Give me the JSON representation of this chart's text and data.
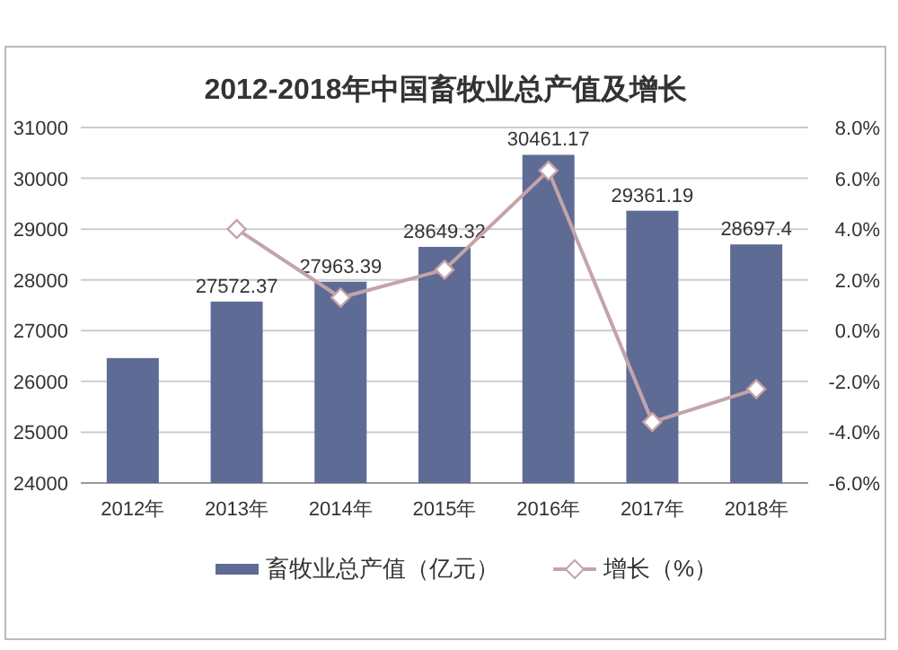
{
  "chart_data": {
    "type": "bar",
    "title": "2012-2018年中国畜牧业总产值及增长",
    "categories": [
      "2012年",
      "2013年",
      "2014年",
      "2015年",
      "2016年",
      "2017年",
      "2018年"
    ],
    "series": [
      {
        "name": "畜牧业总产值（亿元）",
        "color": "#5e6b95",
        "values": [
          26460,
          27572.37,
          27963.39,
          28649.32,
          30461.17,
          29361.19,
          28697.4
        ],
        "value_labels": [
          null,
          "27572.37",
          "27963.39",
          "28649.32",
          "30461.17",
          "29361.19",
          "28697.4"
        ]
      },
      {
        "name": "增长（%）",
        "type": "line",
        "axis": "y2",
        "color": "#c4a4a9",
        "marker": "diamond",
        "values": [
          null,
          4.0,
          1.3,
          2.4,
          6.3,
          -3.6,
          -2.3
        ]
      }
    ],
    "ylim": [
      24000,
      31000
    ],
    "yticks": [
      24000,
      25000,
      26000,
      27000,
      28000,
      29000,
      30000,
      31000
    ],
    "y2lim": [
      -6,
      8
    ],
    "y2ticks": [
      {
        "value": -6,
        "label": "-6.0%"
      },
      {
        "value": -4,
        "label": "-4.0%"
      },
      {
        "value": -2,
        "label": "-2.0%"
      },
      {
        "value": 0,
        "label": "0.0%"
      },
      {
        "value": 2,
        "label": "2.0%"
      },
      {
        "value": 4,
        "label": "4.0%"
      },
      {
        "value": 6,
        "label": "6.0%"
      },
      {
        "value": 8,
        "label": "8.0%"
      }
    ],
    "grid": "y",
    "legend": "bottom"
  }
}
